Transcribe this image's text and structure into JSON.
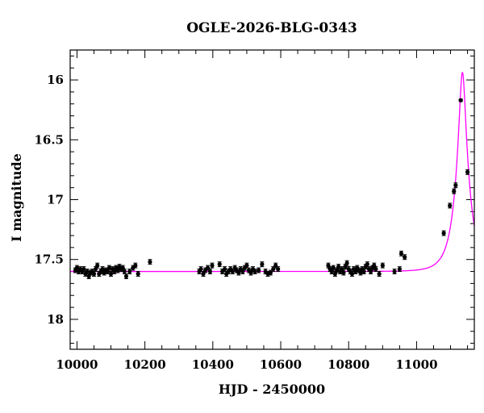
{
  "chart_data": {
    "type": "scatter",
    "title": "OGLE-2026-BLG-0343",
    "xlabel": "HJD - 2450000",
    "ylabel": "I magnitude",
    "xlim": [
      9980,
      11170
    ],
    "ylim": [
      18.25,
      15.75
    ],
    "y_inverted": true,
    "x_ticks": [
      10000,
      10200,
      10400,
      10600,
      10800,
      11000
    ],
    "y_ticks": [
      16,
      16.5,
      17,
      17.5,
      18
    ],
    "y_tick_labels": [
      "16",
      "16.5",
      "17",
      "17.5",
      "18"
    ],
    "colors": {
      "points": "#000000",
      "model": "#ff00ff",
      "frame": "#000000"
    },
    "model": {
      "name": "",
      "baseline": 17.6,
      "t0": 11135,
      "u0": 0.22,
      "tE": 40,
      "color": "#ff00ff"
    },
    "series": [
      {
        "name": "",
        "points": [
          [
            9995,
            17.59,
            0.02
          ],
          [
            10000,
            17.57,
            0.02
          ],
          [
            10005,
            17.6,
            0.02
          ],
          [
            10010,
            17.58,
            0.02
          ],
          [
            10015,
            17.6,
            0.02
          ],
          [
            10020,
            17.58,
            0.02
          ],
          [
            10025,
            17.62,
            0.02
          ],
          [
            10030,
            17.6,
            0.02
          ],
          [
            10035,
            17.64,
            0.02
          ],
          [
            10040,
            17.61,
            0.02
          ],
          [
            10045,
            17.6,
            0.02
          ],
          [
            10050,
            17.62,
            0.02
          ],
          [
            10055,
            17.58,
            0.02
          ],
          [
            10060,
            17.55,
            0.02
          ],
          [
            10065,
            17.62,
            0.02
          ],
          [
            10070,
            17.6,
            0.02
          ],
          [
            10075,
            17.58,
            0.02
          ],
          [
            10080,
            17.61,
            0.02
          ],
          [
            10085,
            17.59,
            0.02
          ],
          [
            10090,
            17.6,
            0.02
          ],
          [
            10095,
            17.57,
            0.02
          ],
          [
            10100,
            17.62,
            0.02
          ],
          [
            10105,
            17.58,
            0.02
          ],
          [
            10110,
            17.6,
            0.02
          ],
          [
            10115,
            17.57,
            0.02
          ],
          [
            10120,
            17.59,
            0.02
          ],
          [
            10125,
            17.56,
            0.02
          ],
          [
            10130,
            17.58,
            0.02
          ],
          [
            10135,
            17.57,
            0.02
          ],
          [
            10140,
            17.6,
            0.02
          ],
          [
            10145,
            17.64,
            0.02
          ],
          [
            10155,
            17.6,
            0.02
          ],
          [
            10165,
            17.57,
            0.02
          ],
          [
            10172,
            17.55,
            0.02
          ],
          [
            10180,
            17.62,
            0.02
          ],
          [
            10215,
            17.52,
            0.02
          ],
          [
            10360,
            17.6,
            0.02
          ],
          [
            10365,
            17.58,
            0.02
          ],
          [
            10372,
            17.62,
            0.02
          ],
          [
            10378,
            17.59,
            0.02
          ],
          [
            10385,
            17.57,
            0.02
          ],
          [
            10392,
            17.6,
            0.02
          ],
          [
            10398,
            17.55,
            0.02
          ],
          [
            10420,
            17.54,
            0.02
          ],
          [
            10428,
            17.6,
            0.02
          ],
          [
            10435,
            17.58,
            0.02
          ],
          [
            10440,
            17.62,
            0.02
          ],
          [
            10446,
            17.6,
            0.02
          ],
          [
            10452,
            17.58,
            0.02
          ],
          [
            10458,
            17.6,
            0.02
          ],
          [
            10465,
            17.57,
            0.02
          ],
          [
            10470,
            17.59,
            0.02
          ],
          [
            10476,
            17.61,
            0.02
          ],
          [
            10482,
            17.58,
            0.02
          ],
          [
            10488,
            17.6,
            0.02
          ],
          [
            10494,
            17.57,
            0.02
          ],
          [
            10500,
            17.55,
            0.02
          ],
          [
            10506,
            17.59,
            0.02
          ],
          [
            10512,
            17.61,
            0.02
          ],
          [
            10518,
            17.58,
            0.02
          ],
          [
            10524,
            17.6,
            0.02
          ],
          [
            10535,
            17.59,
            0.02
          ],
          [
            10545,
            17.54,
            0.02
          ],
          [
            10555,
            17.6,
            0.02
          ],
          [
            10562,
            17.62,
            0.02
          ],
          [
            10570,
            17.61,
            0.02
          ],
          [
            10578,
            17.58,
            0.02
          ],
          [
            10585,
            17.55,
            0.02
          ],
          [
            10592,
            17.58,
            0.02
          ],
          [
            10740,
            17.55,
            0.02
          ],
          [
            10745,
            17.58,
            0.02
          ],
          [
            10750,
            17.6,
            0.02
          ],
          [
            10755,
            17.57,
            0.02
          ],
          [
            10760,
            17.62,
            0.02
          ],
          [
            10765,
            17.59,
            0.02
          ],
          [
            10770,
            17.56,
            0.02
          ],
          [
            10775,
            17.6,
            0.02
          ],
          [
            10780,
            17.58,
            0.02
          ],
          [
            10785,
            17.61,
            0.02
          ],
          [
            10790,
            17.56,
            0.02
          ],
          [
            10795,
            17.53,
            0.02
          ],
          [
            10800,
            17.58,
            0.02
          ],
          [
            10805,
            17.6,
            0.02
          ],
          [
            10810,
            17.62,
            0.02
          ],
          [
            10815,
            17.58,
            0.02
          ],
          [
            10820,
            17.6,
            0.02
          ],
          [
            10825,
            17.57,
            0.02
          ],
          [
            10830,
            17.59,
            0.02
          ],
          [
            10835,
            17.61,
            0.02
          ],
          [
            10840,
            17.58,
            0.02
          ],
          [
            10845,
            17.6,
            0.02
          ],
          [
            10850,
            17.56,
            0.02
          ],
          [
            10855,
            17.54,
            0.02
          ],
          [
            10860,
            17.58,
            0.02
          ],
          [
            10865,
            17.6,
            0.02
          ],
          [
            10870,
            17.57,
            0.02
          ],
          [
            10875,
            17.55,
            0.02
          ],
          [
            10880,
            17.58,
            0.02
          ],
          [
            10890,
            17.62,
            0.02
          ],
          [
            10900,
            17.55,
            0.02
          ],
          [
            10935,
            17.6,
            0.02
          ],
          [
            10950,
            17.58,
            0.02
          ],
          [
            10955,
            17.45,
            0.02
          ],
          [
            10965,
            17.48,
            0.02
          ],
          [
            11080,
            17.28,
            0.02
          ],
          [
            11098,
            17.05,
            0.02
          ],
          [
            11110,
            16.93,
            0.02
          ],
          [
            11115,
            16.88,
            0.02
          ],
          [
            11130,
            16.17,
            0.01
          ],
          [
            11150,
            16.77,
            0.02
          ]
        ]
      }
    ]
  }
}
